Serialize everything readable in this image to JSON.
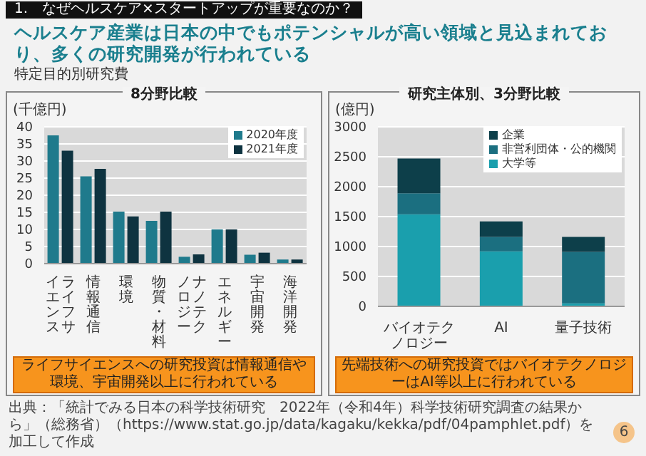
{
  "chart_data": [
    {
      "type": "bar",
      "title": "8分野比較",
      "ylabel": "(千億円)",
      "annotations": [
        "1.　なぜヘルスケア×スタートアップが重要なのか？",
        "ヘルスケア産業は日本の中でもポテンシャルが高い領域と見込まれており、多くの研究開発が行われている",
        "特定目的別研究費",
        "ライフサイエンスへの研究投資は情報通信や環境、宇宙開発以上に行われている"
      ],
      "categories": [
        "ライフサイエンス",
        "情報通信",
        "環境",
        "物質・材料",
        "ナノテクノロジー",
        "エネルギー",
        "宇宙開発",
        "海洋開発"
      ],
      "series": [
        {
          "name": "2020年度",
          "color": "#1f7a8c",
          "values": [
            37.5,
            25.5,
            15.2,
            12.5,
            2,
            10,
            2.6,
            1.2
          ]
        },
        {
          "name": "2021年度",
          "color": "#0e3340",
          "values": [
            33,
            27.7,
            13.8,
            15.2,
            2.7,
            10,
            3.2,
            1.2
          ]
        }
      ],
      "ylim": [
        0,
        40
      ],
      "yticks": [
        0,
        5,
        10,
        15,
        20,
        25,
        30,
        35,
        40
      ],
      "grid": "y",
      "legend": "top right"
    },
    {
      "type": "bar",
      "title": "研究主体別、3分野比較",
      "ylabel": "(億円)",
      "annotations": [
        "先端技術への研究投資ではバイオテクノロジーはAI等以上に行われている",
        "出典：「統計でみる日本の科学技術研究　2022年（令和4年）科学技術研究調査の結果から」（総務省）（https://www.stat.go.jp/data/kagaku/kekka/pdf/04pamphlet.pdf）を加工して作成",
        "6"
      ],
      "categories": [
        "バイオテクノロジー",
        "AI",
        "量子技術"
      ],
      "stacked": true,
      "series": [
        {
          "name": "大学等",
          "color": "#1a9fad",
          "values": [
            1540,
            920,
            50
          ]
        },
        {
          "name": "非営利団体・公的機関",
          "color": "#1b6f80",
          "values": [
            350,
            240,
            860
          ]
        },
        {
          "name": "企業",
          "color": "#0d3f4a",
          "values": [
            580,
            260,
            250
          ]
        }
      ],
      "ylim": [
        0,
        3000
      ],
      "yticks": [
        0,
        500,
        1000,
        1500,
        2000,
        2500,
        3000
      ],
      "grid": "y",
      "legend": "top right"
    }
  ]
}
